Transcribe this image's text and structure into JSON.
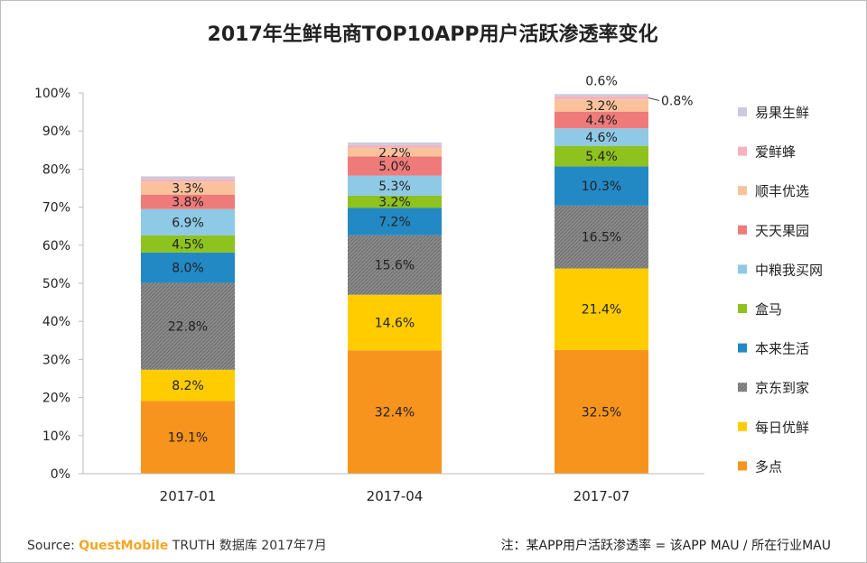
{
  "chart_data": {
    "type": "bar",
    "stacked": true,
    "title": "2017年生鲜电商TOP10APP用户活跃渗透率变化",
    "categories": [
      "2017-01",
      "2017-04",
      "2017-07"
    ],
    "ylim": [
      0,
      100
    ],
    "yticks": [
      "0%",
      "10%",
      "20%",
      "30%",
      "40%",
      "50%",
      "60%",
      "70%",
      "80%",
      "90%",
      "100%"
    ],
    "grid": false,
    "legend": "right",
    "series": [
      {
        "name": "多点",
        "color": "#F7941D",
        "values": [
          19.1,
          32.4,
          32.5
        ],
        "labels": [
          "19.1%",
          "32.4%",
          "32.5%"
        ]
      },
      {
        "name": "每日优鲜",
        "color": "#FFCC00",
        "values": [
          8.2,
          14.6,
          21.4
        ],
        "labels": [
          "8.2%",
          "14.6%",
          "21.4%"
        ]
      },
      {
        "name": "京东到家",
        "color": "#8C8C8C",
        "hatch": true,
        "values": [
          22.8,
          15.6,
          16.5
        ],
        "labels": [
          "22.8%",
          "15.6%",
          "16.5%"
        ]
      },
      {
        "name": "本来生活",
        "color": "#2389C4",
        "values": [
          8.0,
          7.2,
          10.3
        ],
        "labels": [
          "8.0%",
          "7.2%",
          "10.3%"
        ]
      },
      {
        "name": "盒马",
        "color": "#8DC21F",
        "values": [
          4.5,
          3.2,
          5.4
        ],
        "labels": [
          "4.5%",
          "3.2%",
          "5.4%"
        ]
      },
      {
        "name": "中粮我买网",
        "color": "#8EC9E6",
        "values": [
          6.9,
          5.3,
          4.6
        ],
        "labels": [
          "6.9%",
          "5.3%",
          "4.6%"
        ]
      },
      {
        "name": "天天果园",
        "color": "#EF7A7A",
        "values": [
          3.8,
          5.0,
          4.4
        ],
        "labels": [
          "3.8%",
          "5.0%",
          "4.4%"
        ]
      },
      {
        "name": "顺丰优选",
        "color": "#F9C29A",
        "values": [
          3.3,
          2.2,
          3.2
        ],
        "labels": [
          "3.3%",
          "2.2%",
          "3.2%"
        ]
      },
      {
        "name": "爱鲜蜂",
        "color": "#F6B3BE",
        "values": [
          0.8,
          0.8,
          0.8
        ],
        "labels": [
          "",
          "",
          "0.8%"
        ]
      },
      {
        "name": "易果生鲜",
        "color": "#C9CBDD",
        "values": [
          0.7,
          0.7,
          0.6
        ],
        "labels": [
          "",
          "",
          "0.6%"
        ]
      }
    ]
  },
  "footer": {
    "source_prefix": "Source:",
    "brand": "QuestMobile",
    "source_suffix": "TRUTH 数据库 2017年7月",
    "note": "注：某APP用户活跃渗透率 = 该APP MAU / 所在行业MAU"
  }
}
